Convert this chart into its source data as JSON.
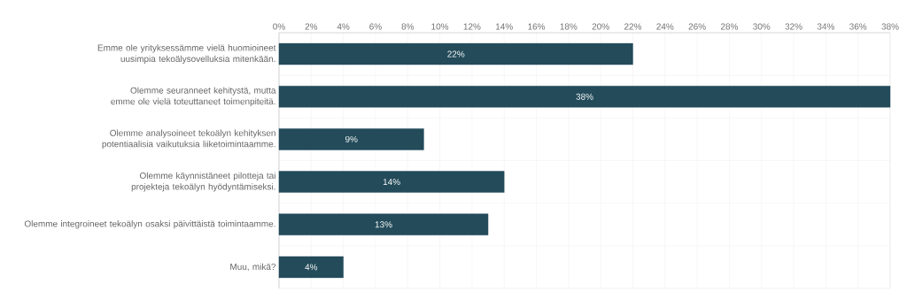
{
  "chart_data": {
    "type": "bar",
    "orientation": "horizontal",
    "categories": [
      "Emme ole yrityksessämme vielä huomioineet uusimpia tekoälysovelluksia mitenkään.",
      "Olemme seuranneet kehitystä, mutta emme ole vielä toteuttaneet toimenpiteitä.",
      "Olemme analysoineet tekoälyn kehityksen potentiaalisia vaikutuksia liiketoimintaamme.",
      "Olemme käynnistäneet pilotteja tai projekteja tekoälyn hyödyntämiseksi.",
      "Olemme integroineet tekoälyn osaksi päivittäistä toimintaamme.",
      "Muu, mikä?"
    ],
    "values": [
      22,
      38,
      9,
      14,
      13,
      4
    ],
    "value_labels": [
      "22%",
      "38%",
      "9%",
      "14%",
      "13%",
      "4%"
    ],
    "color": "#234b5a",
    "xlim": [
      0,
      38
    ],
    "xticks": [
      {
        "value": 0,
        "label": "0%"
      },
      {
        "value": 2,
        "label": "2%"
      },
      {
        "value": 4,
        "label": "4%"
      },
      {
        "value": 6,
        "label": "6%"
      },
      {
        "value": 8,
        "label": "8%"
      },
      {
        "value": 10,
        "label": "10%"
      },
      {
        "value": 12,
        "label": "12%"
      },
      {
        "value": 14,
        "label": "14%"
      },
      {
        "value": 16,
        "label": "16%"
      },
      {
        "value": 18,
        "label": "18%"
      },
      {
        "value": 20,
        "label": "20%"
      },
      {
        "value": 22,
        "label": "22%"
      },
      {
        "value": 24,
        "label": "24%"
      },
      {
        "value": 26,
        "label": "26%"
      },
      {
        "value": 28,
        "label": "28%"
      },
      {
        "value": 30,
        "label": "30%"
      },
      {
        "value": 32,
        "label": "32%"
      },
      {
        "value": 34,
        "label": "34%"
      },
      {
        "value": 36,
        "label": "36%"
      },
      {
        "value": 38,
        "label": "38%"
      }
    ],
    "grid": true
  }
}
